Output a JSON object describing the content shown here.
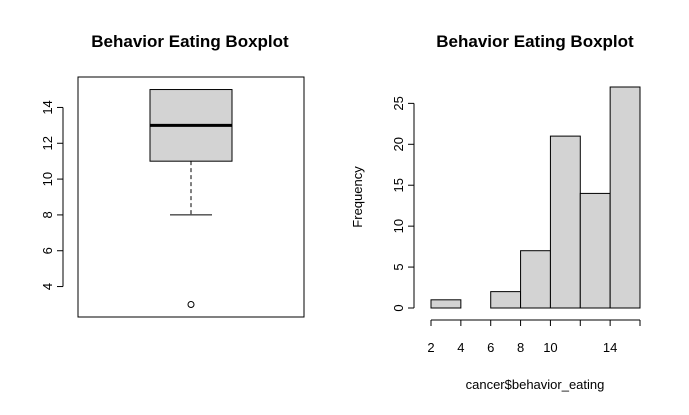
{
  "chart_data": [
    {
      "type": "box",
      "title": "Behavior Eating Boxplot",
      "xlabel": "",
      "ylabel": "",
      "ylim": [
        2.3,
        15.7
      ],
      "yticks": [
        4,
        6,
        8,
        10,
        12,
        14
      ],
      "box": {
        "lower_whisker": 8,
        "q1": 11,
        "median": 13,
        "q3": 15,
        "upper_whisker": 15,
        "outliers": [
          3
        ]
      },
      "colors": {
        "box_fill": "#d3d3d3",
        "stroke": "#000000"
      }
    },
    {
      "type": "bar",
      "title": "Behavior Eating Boxplot",
      "xlabel": "cancer$behavior_eating",
      "ylabel": "Frequency",
      "xlim": [
        2,
        16
      ],
      "ylim": [
        0,
        27
      ],
      "xticks": [
        2,
        4,
        6,
        8,
        10,
        14
      ],
      "yticks": [
        0,
        5,
        10,
        15,
        20,
        25
      ],
      "bins": [
        [
          2,
          4
        ],
        [
          4,
          6
        ],
        [
          6,
          8
        ],
        [
          8,
          10
        ],
        [
          10,
          12
        ],
        [
          12,
          14
        ],
        [
          14,
          16
        ]
      ],
      "values": [
        1,
        0,
        2,
        7,
        21,
        14,
        27
      ],
      "colors": {
        "bar_fill": "#d3d3d3",
        "stroke": "#000000"
      }
    }
  ]
}
